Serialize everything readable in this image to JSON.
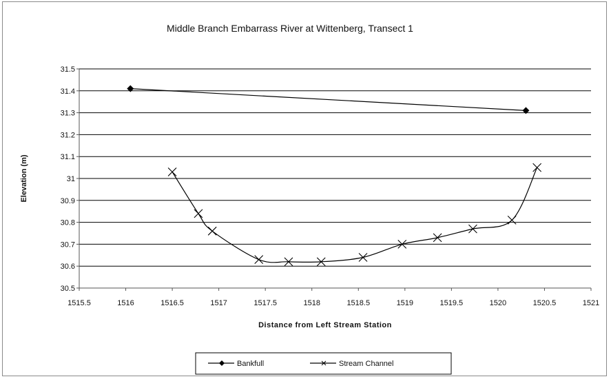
{
  "chart_data": {
    "type": "line",
    "title": "Middle Branch Embarrass River at Wittenberg, Transect 1",
    "xlabel": "Distance from Left Stream Station",
    "ylabel": "Elevation (m)",
    "xlim": [
      1515.5,
      1521
    ],
    "ylim": [
      30.5,
      31.5
    ],
    "x_ticks": [
      "1515.5",
      "1516",
      "1516.5",
      "1517",
      "1517.5",
      "1518",
      "1518.5",
      "1519",
      "1519.5",
      "1520",
      "1520.5",
      "1521"
    ],
    "y_ticks": [
      "30.5",
      "30.6",
      "30.7",
      "30.8",
      "30.9",
      "31",
      "31.1",
      "31.2",
      "31.3",
      "31.4",
      "31.5"
    ],
    "grid": "horizontal",
    "legend_position": "bottom",
    "series": [
      {
        "name": "Bankfull",
        "marker": "diamond",
        "color": "#000000",
        "points": [
          [
            1516.05,
            31.41
          ],
          [
            1520.3,
            31.31
          ]
        ]
      },
      {
        "name": "Stream Channel",
        "marker": "x",
        "color": "#000000",
        "points": [
          [
            1516.5,
            31.03
          ],
          [
            1516.78,
            30.84
          ],
          [
            1516.93,
            30.76
          ],
          [
            1517.43,
            30.63
          ],
          [
            1517.75,
            30.62
          ],
          [
            1518.1,
            30.62
          ],
          [
            1518.55,
            30.64
          ],
          [
            1518.97,
            30.7
          ],
          [
            1519.35,
            30.73
          ],
          [
            1519.73,
            30.77
          ],
          [
            1520.15,
            30.81
          ],
          [
            1520.42,
            31.05
          ]
        ]
      }
    ]
  }
}
